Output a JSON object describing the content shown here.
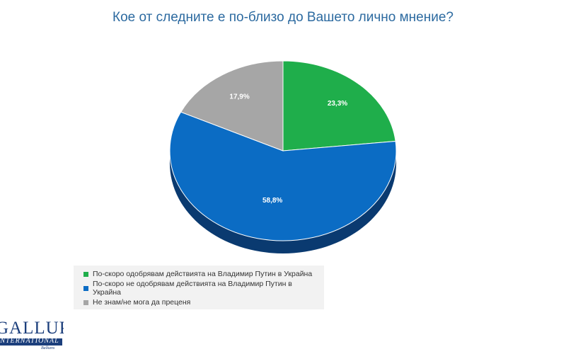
{
  "chart_data": {
    "type": "pie",
    "title": "Кое от следните е по-близо до Вашето лично мнение?",
    "slices": [
      {
        "label": "По-скоро одобрявам действията на Владимир Путин в Украйна",
        "value": 23.3,
        "display": "23,3%",
        "color": "#1fae4b",
        "side_color": "#157a34"
      },
      {
        "label": "По-скоро не одобрявам действията на Владимир Путин в Украйна",
        "value": 58.8,
        "display": "58,8%",
        "color": "#0b6cc4",
        "side_color": "#0a3a70"
      },
      {
        "label": "Не знам/не мога да преценя",
        "value": 17.9,
        "display": "17,9%",
        "color": "#a6a6a6",
        "side_color": "#6f6f6f"
      }
    ],
    "legend_position": "bottom-left"
  },
  "logo": {
    "main": "GALLUP",
    "sub": "INTERNATIONAL",
    "region": "Balkans"
  }
}
